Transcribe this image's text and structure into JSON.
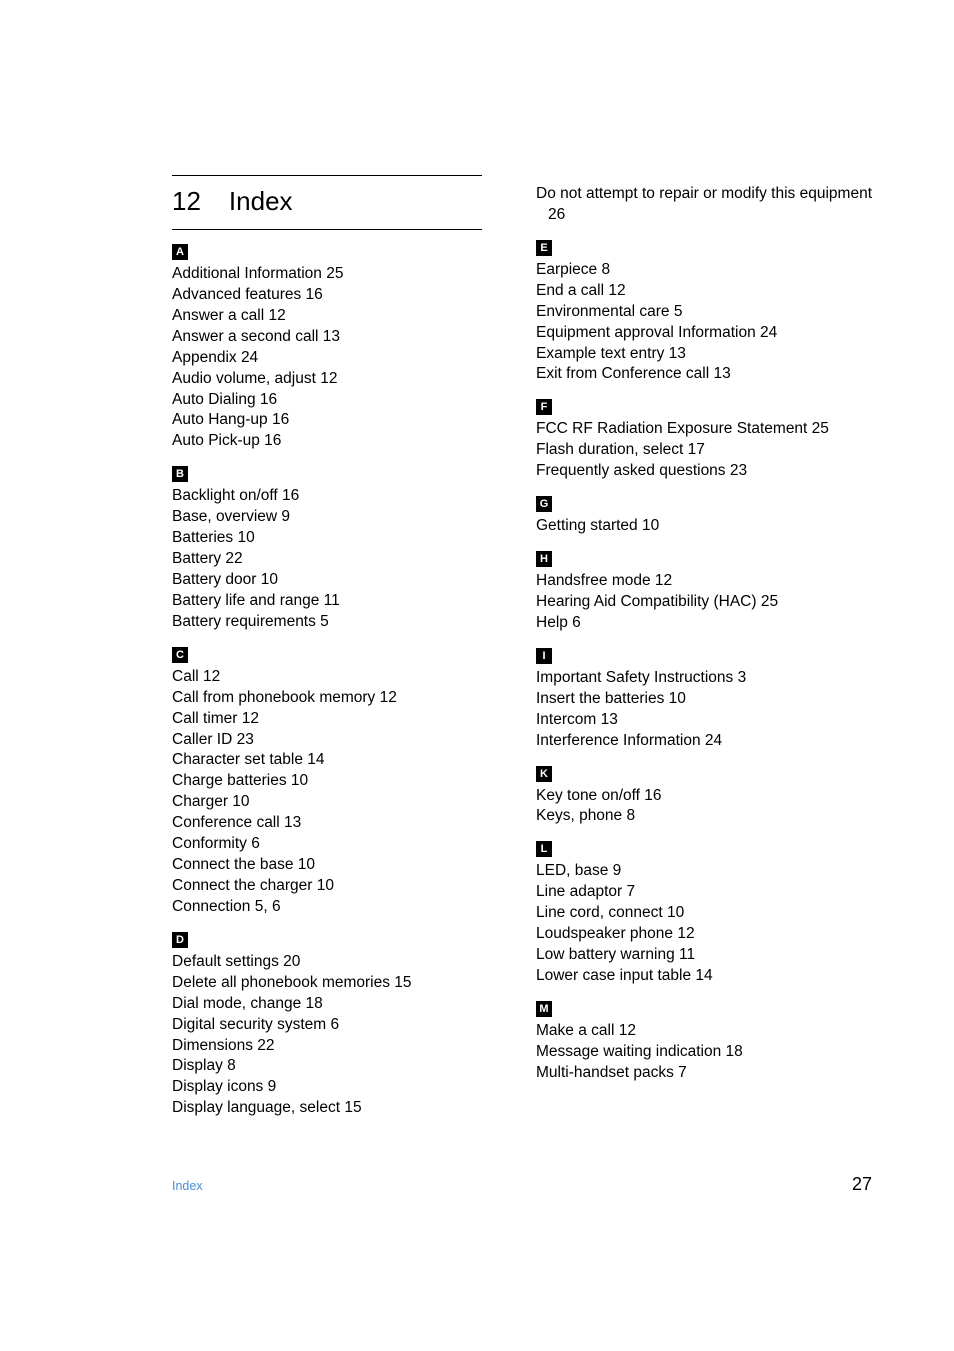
{
  "chapter": {
    "number": "12",
    "title": "Index"
  },
  "sections": {
    "left": [
      {
        "letter": "A",
        "entries": [
          "Additional Information 25",
          "Advanced features 16",
          "Answer a call 12",
          "Answer a second call 13",
          "Appendix 24",
          "Audio volume, adjust 12",
          "Auto Dialing 16",
          "Auto Hang-up 16",
          "Auto Pick-up 16"
        ]
      },
      {
        "letter": "B",
        "entries": [
          "Backlight on/off 16",
          "Base, overview 9",
          "Batteries 10",
          "Battery 22",
          "Battery door 10",
          "Battery life and range 11",
          "Battery requirements 5"
        ]
      },
      {
        "letter": "C",
        "entries": [
          "Call 12",
          "Call from phonebook memory 12",
          "Call timer 12",
          "Caller ID 23",
          "Character set table 14",
          "Charge batteries 10",
          "Charger 10",
          "Conference call 13",
          "Conformity 6",
          "Connect the base 10",
          "Connect the charger 10",
          "Connection 5, 6"
        ]
      },
      {
        "letter": "D",
        "entries": [
          "Default settings 20",
          "Delete all phonebook memories 15",
          "Dial mode, change 18",
          "Digital security system 6",
          "Dimensions 22",
          "Display 8",
          "Display icons 9",
          "Display language, select 15"
        ]
      }
    ],
    "right_pre": [
      "Do not attempt to repair or modify this equipment 26"
    ],
    "right": [
      {
        "letter": "E",
        "entries": [
          "Earpiece 8",
          "End a call 12",
          "Environmental care 5",
          "Equipment approval Information 24",
          "Example text entry 13",
          "Exit from Conference call 13"
        ]
      },
      {
        "letter": "F",
        "entries": [
          "FCC RF Radiation Exposure Statement 25",
          "Flash duration, select 17",
          "Frequently asked questions 23"
        ]
      },
      {
        "letter": "G",
        "entries": [
          "Getting started 10"
        ]
      },
      {
        "letter": "H",
        "entries": [
          "Handsfree mode 12",
          "Hearing Aid Compatibility (HAC) 25",
          "Help 6"
        ]
      },
      {
        "letter": "I",
        "entries": [
          "Important Safety Instructions 3",
          "Insert the batteries 10",
          "Intercom 13",
          "Interference Information 24"
        ]
      },
      {
        "letter": "K",
        "entries": [
          "Key tone on/off 16",
          "Keys, phone 8"
        ]
      },
      {
        "letter": "L",
        "entries": [
          "LED, base 9",
          "Line adaptor 7",
          "Line cord, connect 10",
          "Loudspeaker phone 12",
          "Low battery warning 11",
          "Lower case input table 14"
        ]
      },
      {
        "letter": "M",
        "entries": [
          "Make a call 12",
          "Message waiting indication 18",
          "Multi-handset packs 7"
        ]
      }
    ]
  },
  "footer": {
    "label": "Index",
    "page": "27"
  },
  "colors": {
    "text": "#000000",
    "bg": "#ffffff",
    "accent": "#4a8fd1",
    "badge_bg": "#000000",
    "badge_fg": "#ffffff"
  },
  "typography": {
    "body_fontsize": 15.5,
    "chapter_fontsize": 26,
    "footer_label_fontsize": 12.5,
    "footer_page_fontsize": 18
  }
}
